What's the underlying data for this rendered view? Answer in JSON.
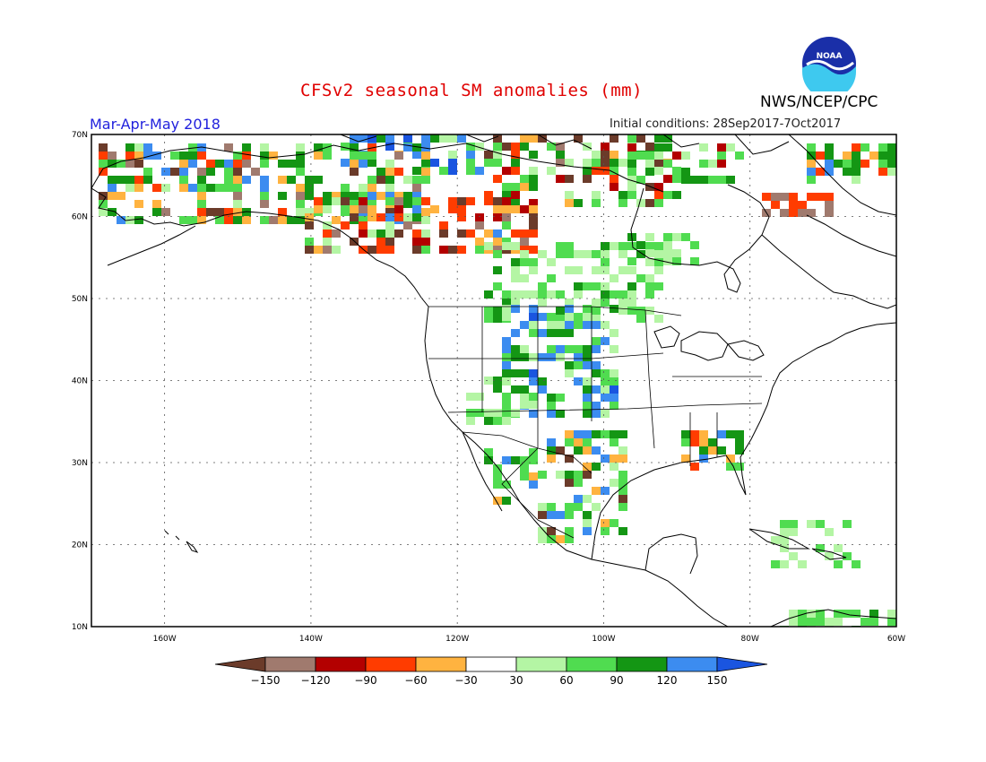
{
  "title": "CFSv2 seasonal SM anomalies (mm)",
  "agency": "NWS/NCEP/CPC",
  "logo": {
    "text": "NOAA",
    "icon": "noaa-logo"
  },
  "season": "Mar-Apr-May 2018",
  "initial_conditions": "Initial conditions: 28Sep2017-7Oct2017",
  "map": {
    "lat_labels": [
      "70N",
      "60N",
      "50N",
      "40N",
      "30N",
      "20N",
      "10N"
    ],
    "lon_labels": [
      "160W",
      "140W",
      "120W",
      "100W",
      "80W",
      "60W"
    ],
    "lat_values": [
      70,
      60,
      50,
      40,
      30,
      20,
      10
    ],
    "lon_values": [
      -160,
      -140,
      -120,
      -100,
      -80,
      -60
    ],
    "extent": {
      "lon_min": -170,
      "lon_max": -60,
      "lat_min": 10,
      "lat_max": 70
    },
    "grid": "dotted"
  },
  "colorbar": {
    "labels": [
      "-150",
      "-120",
      "-90",
      "-60",
      "-30",
      "30",
      "60",
      "90",
      "120",
      "150"
    ],
    "colors": [
      "#6b3b2a",
      "#a07a6e",
      "#b30000",
      "#ff3c00",
      "#ffb340",
      "#ffffff",
      "#b4f5a4",
      "#50dc50",
      "#149614",
      "#3c8cf0",
      "#1a55e0"
    ]
  },
  "anomaly_categories": [
    {
      "range": "< -150",
      "color": "#6b3b2a"
    },
    {
      "range": "-150 to -120",
      "color": "#a07a6e"
    },
    {
      "range": "-120 to -90",
      "color": "#b30000"
    },
    {
      "range": "-90 to -60",
      "color": "#ff3c00"
    },
    {
      "range": "-60 to -30",
      "color": "#ffb340"
    },
    {
      "range": "-30 to 30",
      "color": "#ffffff"
    },
    {
      "range": "30 to 60",
      "color": "#b4f5a4"
    },
    {
      "range": "60 to 90",
      "color": "#50dc50"
    },
    {
      "range": "90 to 120",
      "color": "#149614"
    },
    {
      "range": "120 to 150",
      "color": "#3c8cf0"
    },
    {
      "range": "> 150",
      "color": "#1a55e0"
    }
  ]
}
